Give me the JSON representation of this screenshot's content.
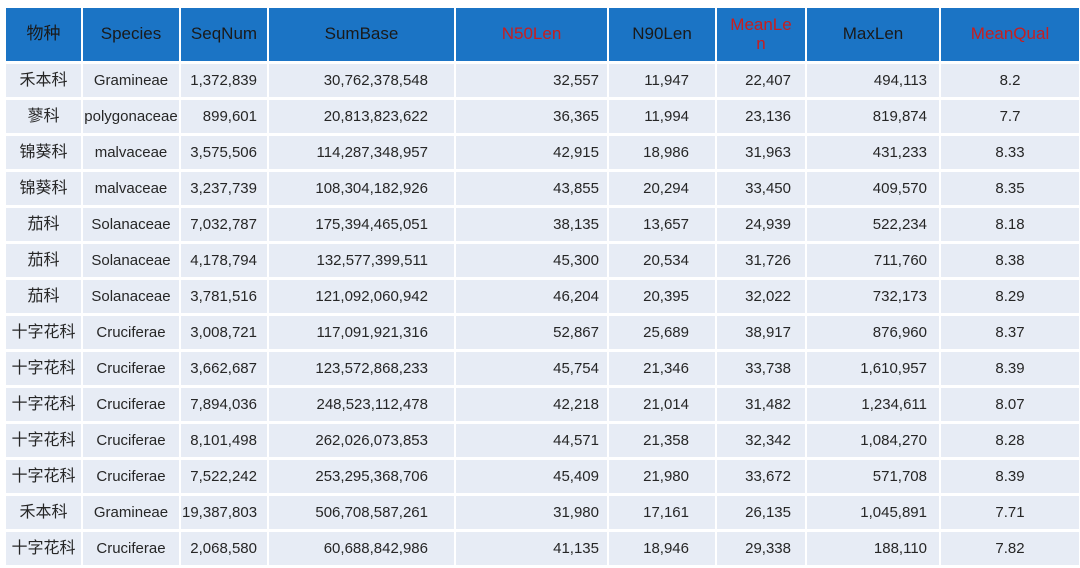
{
  "colors": {
    "header_bg": "#1B74C5",
    "header_text": "#1A1A1A",
    "header_accent_red": "#C81E1E",
    "row_bg": "#E7ECF5",
    "cell_text": "#262626",
    "grid_line": "#FFFFFF"
  },
  "table": {
    "columns": [
      {
        "key": "family-cn",
        "label": "物种",
        "accent": false
      },
      {
        "key": "species",
        "label": "Species",
        "accent": false
      },
      {
        "key": "seqnum",
        "label": "SeqNum",
        "accent": false
      },
      {
        "key": "sumbase",
        "label": "SumBase",
        "accent": false
      },
      {
        "key": "n50len",
        "label": "N50Len",
        "accent": true
      },
      {
        "key": "n90len",
        "label": "N90Len",
        "accent": false
      },
      {
        "key": "meanlen",
        "label": "MeanLen",
        "accent": true
      },
      {
        "key": "maxlen",
        "label": "MaxLen",
        "accent": false
      },
      {
        "key": "meanqual",
        "label": "MeanQual",
        "accent": true
      }
    ],
    "rows": [
      [
        "禾本科",
        "Gramineae",
        "1,372,839",
        "30,762,378,548",
        "32,557",
        "11,947",
        "22,407",
        "494,113",
        "8.2"
      ],
      [
        "蓼科",
        "polygonaceae",
        "899,601",
        "20,813,823,622",
        "36,365",
        "11,994",
        "23,136",
        "819,874",
        "7.7"
      ],
      [
        "锦葵科",
        "malvaceae",
        "3,575,506",
        "114,287,348,957",
        "42,915",
        "18,986",
        "31,963",
        "431,233",
        "8.33"
      ],
      [
        "锦葵科",
        "malvaceae",
        "3,237,739",
        "108,304,182,926",
        "43,855",
        "20,294",
        "33,450",
        "409,570",
        "8.35"
      ],
      [
        "茄科",
        "Solanaceae",
        "7,032,787",
        "175,394,465,051",
        "38,135",
        "13,657",
        "24,939",
        "522,234",
        "8.18"
      ],
      [
        "茄科",
        "Solanaceae",
        "4,178,794",
        "132,577,399,511",
        "45,300",
        "20,534",
        "31,726",
        "711,760",
        "8.38"
      ],
      [
        "茄科",
        "Solanaceae",
        "3,781,516",
        "121,092,060,942",
        "46,204",
        "20,395",
        "32,022",
        "732,173",
        "8.29"
      ],
      [
        "十字花科",
        "Cruciferae",
        "3,008,721",
        "117,091,921,316",
        "52,867",
        "25,689",
        "38,917",
        "876,960",
        "8.37"
      ],
      [
        "十字花科",
        "Cruciferae",
        "3,662,687",
        "123,572,868,233",
        "45,754",
        "21,346",
        "33,738",
        "1,610,957",
        "8.39"
      ],
      [
        "十字花科",
        "Cruciferae",
        "7,894,036",
        "248,523,112,478",
        "42,218",
        "21,014",
        "31,482",
        "1,234,611",
        "8.07"
      ],
      [
        "十字花科",
        "Cruciferae",
        "8,101,498",
        "262,026,073,853",
        "44,571",
        "21,358",
        "32,342",
        "1,084,270",
        "8.28"
      ],
      [
        "十字花科",
        "Cruciferae",
        "7,522,242",
        "253,295,368,706",
        "45,409",
        "21,980",
        "33,672",
        "571,708",
        "8.39"
      ],
      [
        "禾本科",
        "Gramineae",
        "19,387,803",
        "506,708,587,261",
        "31,980",
        "17,161",
        "26,135",
        "1,045,891",
        "7.71"
      ],
      [
        "十字花科",
        "Cruciferae",
        "2,068,580",
        "60,688,842,986",
        "41,135",
        "18,946",
        "29,338",
        "188,110",
        "7.82"
      ]
    ]
  },
  "chart_data": {
    "type": "table",
    "title": "",
    "columns": [
      "物种",
      "Species",
      "SeqNum",
      "SumBase",
      "N50Len",
      "N90Len",
      "MeanLen",
      "MaxLen",
      "MeanQual"
    ],
    "rows": [
      [
        "禾本科",
        "Gramineae",
        "1,372,839",
        "30,762,378,548",
        "32,557",
        "11,947",
        "22,407",
        "494,113",
        "8.2"
      ],
      [
        "蓼科",
        "polygonaceae",
        "899,601",
        "20,813,823,622",
        "36,365",
        "11,994",
        "23,136",
        "819,874",
        "7.7"
      ],
      [
        "锦葵科",
        "malvaceae",
        "3,575,506",
        "114,287,348,957",
        "42,915",
        "18,986",
        "31,963",
        "431,233",
        "8.33"
      ],
      [
        "锦葵科",
        "malvaceae",
        "3,237,739",
        "108,304,182,926",
        "43,855",
        "20,294",
        "33,450",
        "409,570",
        "8.35"
      ],
      [
        "茄科",
        "Solanaceae",
        "7,032,787",
        "175,394,465,051",
        "38,135",
        "13,657",
        "24,939",
        "522,234",
        "8.18"
      ],
      [
        "茄科",
        "Solanaceae",
        "4,178,794",
        "132,577,399,511",
        "45,300",
        "20,534",
        "31,726",
        "711,760",
        "8.38"
      ],
      [
        "茄科",
        "Solanaceae",
        "3,781,516",
        "121,092,060,942",
        "46,204",
        "20,395",
        "32,022",
        "732,173",
        "8.29"
      ],
      [
        "十字花科",
        "Cruciferae",
        "3,008,721",
        "117,091,921,316",
        "52,867",
        "25,689",
        "38,917",
        "876,960",
        "8.37"
      ],
      [
        "十字花科",
        "Cruciferae",
        "3,662,687",
        "123,572,868,233",
        "45,754",
        "21,346",
        "33,738",
        "1,610,957",
        "8.39"
      ],
      [
        "十字花科",
        "Cruciferae",
        "7,894,036",
        "248,523,112,478",
        "42,218",
        "21,014",
        "31,482",
        "1,234,611",
        "8.07"
      ],
      [
        "十字花科",
        "Cruciferae",
        "8,101,498",
        "262,026,073,853",
        "44,571",
        "21,358",
        "32,342",
        "1,084,270",
        "8.28"
      ],
      [
        "十字花科",
        "Cruciferae",
        "7,522,242",
        "253,295,368,706",
        "45,409",
        "21,980",
        "33,672",
        "571,708",
        "8.39"
      ],
      [
        "禾本科",
        "Gramineae",
        "19,387,803",
        "506,708,587,261",
        "31,980",
        "17,161",
        "26,135",
        "1,045,891",
        "7.71"
      ],
      [
        "十字花科",
        "Cruciferae",
        "2,068,580",
        "60,688,842,986",
        "41,135",
        "18,946",
        "29,338",
        "188,110",
        "7.82"
      ]
    ]
  }
}
